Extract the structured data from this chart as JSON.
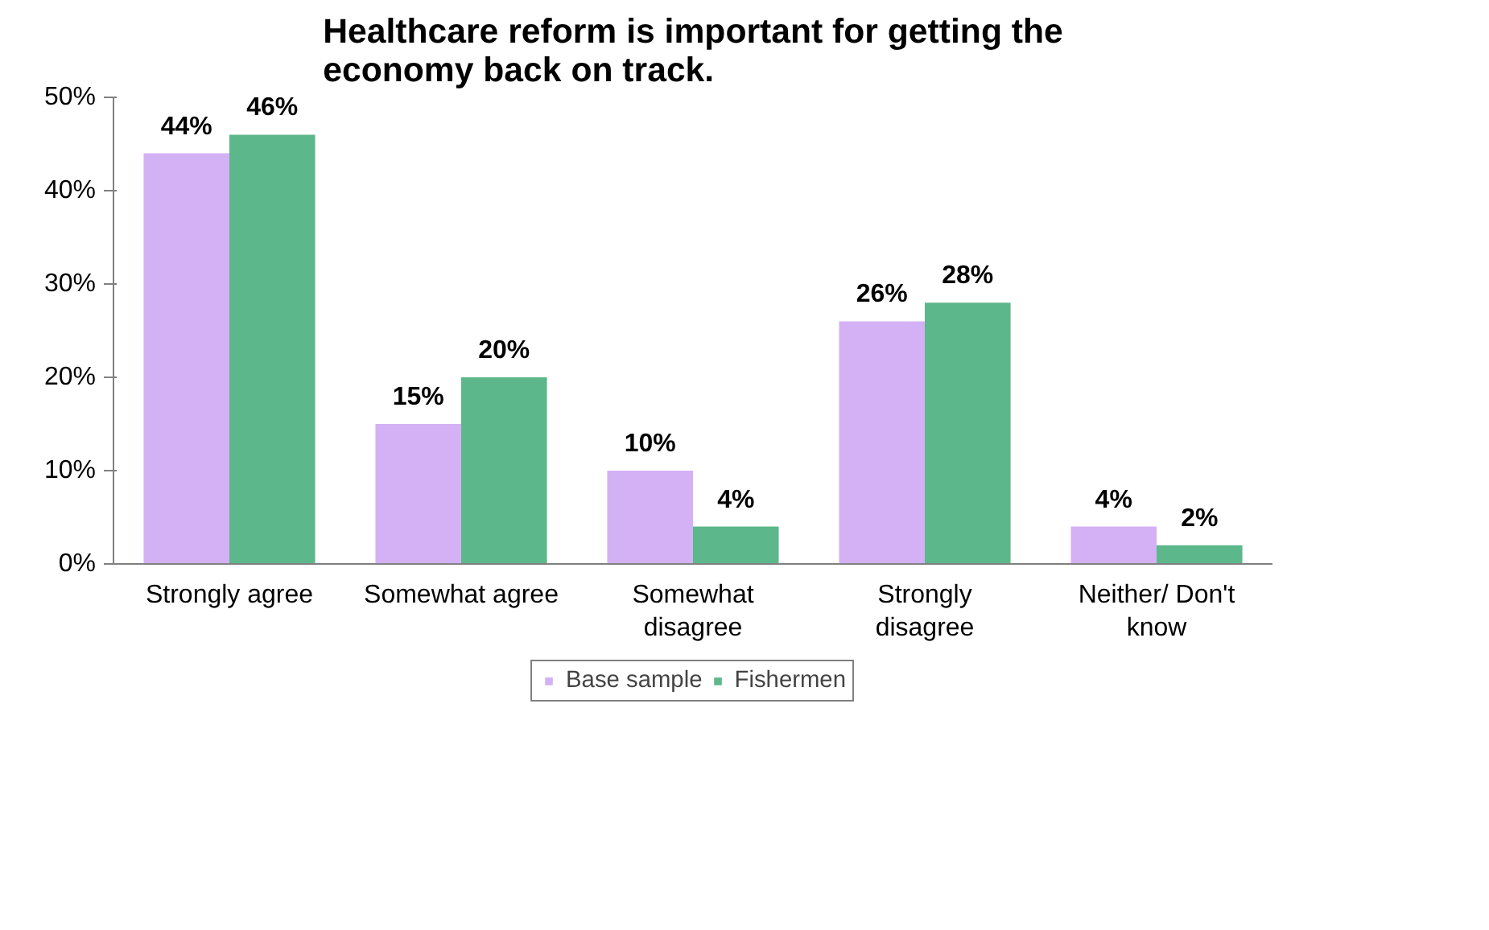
{
  "chart_data": {
    "type": "bar",
    "title": "Healthcare reform is important for getting the economy back on track.",
    "categories": [
      "Strongly agree",
      "Somewhat agree",
      "Somewhat disagree",
      "Strongly disagree",
      "Neither/ Don't know"
    ],
    "series": [
      {
        "name": "Base sample",
        "color": "#d4b0f5",
        "values": [
          44,
          15,
          10,
          26,
          4
        ]
      },
      {
        "name": "Fishermen",
        "color": "#5cb88a",
        "values": [
          46,
          20,
          4,
          28,
          2
        ]
      }
    ],
    "ylim": [
      0,
      50
    ],
    "yticks": [
      {
        "value": 0,
        "label": "0%"
      },
      {
        "value": 10,
        "label": "10%"
      },
      {
        "value": 20,
        "label": "20%"
      },
      {
        "value": 30,
        "label": "30%"
      },
      {
        "value": 40,
        "label": "40%"
      },
      {
        "value": 50,
        "label": "50%"
      }
    ],
    "value_labels": [
      [
        "44%",
        "15%",
        "10%",
        "26%",
        "4%"
      ],
      [
        "46%",
        "20%",
        "4%",
        "28%",
        "2%"
      ]
    ],
    "grid": false,
    "legend": "bottom"
  }
}
